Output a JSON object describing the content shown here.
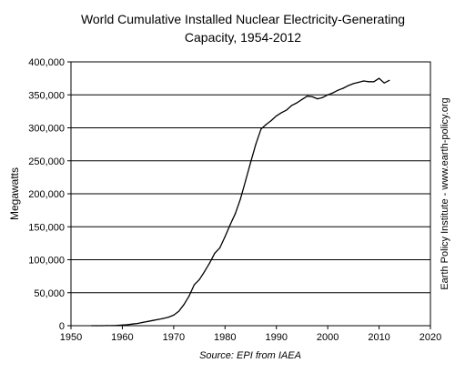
{
  "chart_data": {
    "type": "line",
    "title_lines": [
      "World Cumulative Installed Nuclear Electricity-Generating",
      "Capacity, 1954-2012"
    ],
    "ylabel": "Megawatts",
    "xlabel": "",
    "source": "Source: EPI from IAEA",
    "side_note": "Earth Policy Institute - www.earth-policy.org",
    "xlim": [
      1950,
      2020
    ],
    "ylim": [
      0,
      400000
    ],
    "x_ticks": [
      1950,
      1960,
      1970,
      1980,
      1990,
      2000,
      2010,
      2020
    ],
    "x_tick_labels": [
      "1950",
      "1960",
      "1970",
      "1980",
      "1990",
      "2000",
      "2010",
      "2020"
    ],
    "y_ticks": [
      0,
      50000,
      100000,
      150000,
      200000,
      250000,
      300000,
      350000,
      400000
    ],
    "y_tick_labels": [
      "0",
      "50,000",
      "100,000",
      "150,000",
      "200,000",
      "250,000",
      "300,000",
      "350,000",
      "400,000"
    ],
    "grid": "horizontal",
    "line_color": "#000000",
    "series": [
      {
        "x": [
          1954,
          1955,
          1956,
          1957,
          1958,
          1959,
          1960,
          1961,
          1962,
          1963,
          1964,
          1965,
          1966,
          1967,
          1968,
          1969,
          1970,
          1971,
          1972,
          1973,
          1974,
          1975,
          1976,
          1977,
          1978,
          1979,
          1980,
          1981,
          1982,
          1983,
          1984,
          1985,
          1986,
          1987,
          1988,
          1989,
          1990,
          1991,
          1992,
          1993,
          1994,
          1995,
          1996,
          1997,
          1998,
          1999,
          2000,
          2001,
          2002,
          2003,
          2004,
          2005,
          2006,
          2007,
          2008,
          2009,
          2010,
          2011,
          2012
        ],
        "values": [
          5,
          10,
          60,
          150,
          200,
          400,
          900,
          1500,
          2500,
          3500,
          5000,
          6500,
          8000,
          9500,
          11000,
          13000,
          16000,
          22000,
          32000,
          45000,
          62000,
          70000,
          82000,
          95000,
          110000,
          118000,
          135000,
          153000,
          170000,
          192000,
          220000,
          248000,
          275000,
          298000,
          305000,
          311000,
          318000,
          323000,
          327000,
          334000,
          338000,
          343000,
          348000,
          347000,
          344000,
          346000,
          350000,
          353000,
          357000,
          360000,
          364000,
          367000,
          369000,
          371000,
          370000,
          370000,
          375000,
          368000,
          372000
        ]
      }
    ]
  }
}
